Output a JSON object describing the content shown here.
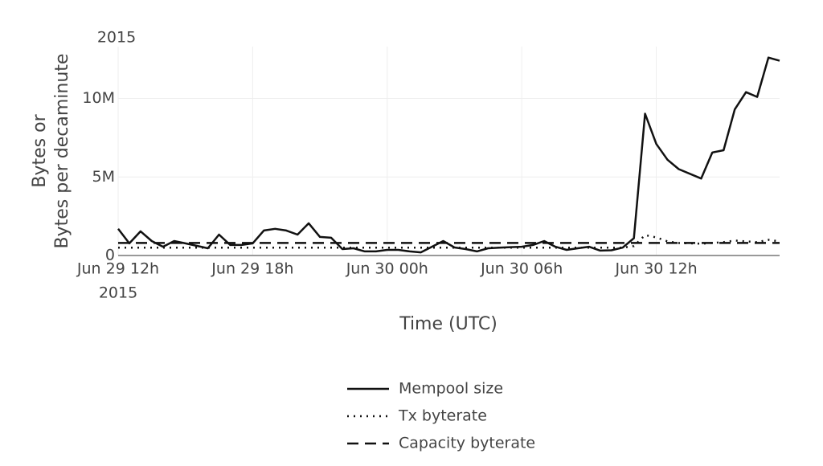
{
  "chart_data": {
    "type": "line",
    "annotations": [
      "2015"
    ],
    "x_year_label": "2015",
    "xlabel": "Time (UTC)",
    "ylabel": [
      "Bytes or",
      "Bytes per decaminute"
    ],
    "x": [
      "2015-06-29 12:00",
      "2015-06-29 12:30",
      "2015-06-29 13:00",
      "2015-06-29 13:30",
      "2015-06-29 14:00",
      "2015-06-29 14:30",
      "2015-06-29 15:00",
      "2015-06-29 16:00",
      "2015-06-29 16:30",
      "2015-06-29 17:00",
      "2015-06-29 17:30",
      "2015-06-29 18:00",
      "2015-06-29 18:30",
      "2015-06-29 19:00",
      "2015-06-29 19:30",
      "2015-06-29 20:00",
      "2015-06-29 20:30",
      "2015-06-29 21:00",
      "2015-06-29 21:30",
      "2015-06-29 22:00",
      "2015-06-29 22:30",
      "2015-06-29 23:00",
      "2015-06-29 23:30",
      "2015-06-30 00:00",
      "2015-06-30 00:30",
      "2015-06-30 01:00",
      "2015-06-30 01:30",
      "2015-06-30 02:30",
      "2015-06-30 03:00",
      "2015-06-30 03:30",
      "2015-06-30 04:00",
      "2015-06-30 04:30",
      "2015-06-30 05:00",
      "2015-06-30 05:30",
      "2015-06-30 06:00",
      "2015-06-30 06:30",
      "2015-06-30 07:00",
      "2015-06-30 07:30",
      "2015-06-30 08:00",
      "2015-06-30 08:30",
      "2015-06-30 09:00",
      "2015-06-30 09:30",
      "2015-06-30 10:00",
      "2015-06-30 10:30",
      "2015-06-30 11:00",
      "2015-06-30 11:30",
      "2015-06-30 12:00",
      "2015-06-30 12:30",
      "2015-06-30 13:00",
      "2015-06-30 14:00",
      "2015-06-30 14:30",
      "2015-06-30 15:00",
      "2015-06-30 15:30",
      "2015-06-30 16:00",
      "2015-06-30 16:30",
      "2015-06-30 17:00",
      "2015-06-30 17:30"
    ],
    "series": [
      {
        "name": "Mempool size",
        "color": "#111111",
        "dash": "solid",
        "values": [
          1700000,
          770000,
          1540000,
          920000,
          560000,
          920000,
          770000,
          460000,
          1330000,
          670000,
          670000,
          770000,
          1590000,
          1700000,
          1590000,
          1330000,
          2050000,
          1180000,
          1130000,
          410000,
          460000,
          260000,
          260000,
          360000,
          360000,
          260000,
          200000,
          920000,
          510000,
          410000,
          260000,
          460000,
          500000,
          530000,
          560000,
          670000,
          920000,
          560000,
          360000,
          460000,
          560000,
          310000,
          330000,
          500000,
          1100000,
          9030000,
          7100000,
          6100000,
          5500000,
          4900000,
          6560000,
          6700000,
          9300000,
          10400000,
          10100000,
          12600000,
          12400000
        ]
      },
      {
        "name": "Tx byterate",
        "color": "#111111",
        "dash": "dot",
        "values": [
          500000,
          500000,
          500000,
          500000,
          500000,
          500000,
          500000,
          500000,
          500000,
          500000,
          500000,
          500000,
          500000,
          500000,
          500000,
          500000,
          500000,
          500000,
          500000,
          500000,
          500000,
          500000,
          500000,
          500000,
          500000,
          500000,
          500000,
          500000,
          500000,
          500000,
          500000,
          500000,
          500000,
          500000,
          500000,
          500000,
          500000,
          500000,
          500000,
          500000,
          500000,
          500000,
          500000,
          500000,
          600000,
          1300000,
          1150000,
          900000,
          800000,
          750000,
          800000,
          850000,
          950000,
          900000,
          850000,
          1000000,
          900000
        ]
      },
      {
        "name": "Capacity byterate",
        "color": "#111111",
        "dash": "dash",
        "values": [
          800000,
          800000,
          800000,
          800000,
          800000,
          800000,
          800000,
          800000,
          800000,
          800000,
          800000,
          800000,
          800000,
          800000,
          800000,
          800000,
          800000,
          800000,
          800000,
          800000,
          800000,
          800000,
          800000,
          800000,
          800000,
          800000,
          800000,
          800000,
          800000,
          800000,
          800000,
          800000,
          800000,
          800000,
          800000,
          800000,
          800000,
          800000,
          800000,
          800000,
          800000,
          800000,
          800000,
          800000,
          800000,
          800000,
          800000,
          800000,
          800000,
          800000,
          800000,
          800000,
          800000,
          800000,
          800000,
          800000,
          800000
        ]
      }
    ],
    "xlim": [
      "2015-06-29 12:00",
      "2015-06-30 17:30"
    ],
    "xticks": [
      {
        "value": "2015-06-29 12:00",
        "label": "Jun 29 12h"
      },
      {
        "value": "2015-06-29 18:00",
        "label": "Jun 29 18h"
      },
      {
        "value": "2015-06-30 00:00",
        "label": "Jun 30 00h"
      },
      {
        "value": "2015-06-30 06:00",
        "label": "Jun 30 06h"
      },
      {
        "value": "2015-06-30 12:00",
        "label": "Jun 30 12h"
      }
    ],
    "ylim": [
      0,
      13300000
    ],
    "yticks": [
      0,
      {
        "value": 5000000,
        "label": "5M"
      },
      {
        "value": 10000000,
        "label": "10M"
      }
    ],
    "grid": true,
    "legend": "bottom"
  }
}
